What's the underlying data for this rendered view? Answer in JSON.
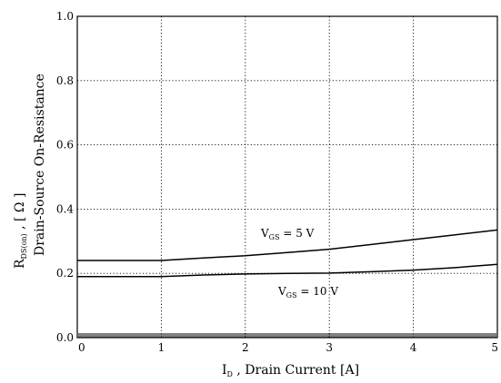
{
  "chart_data": {
    "type": "line",
    "x_ticks": [
      "0",
      "1",
      "2",
      "3",
      "4",
      "5"
    ],
    "y_ticks": [
      "0.0",
      "0.2",
      "0.4",
      "0.6",
      "0.8",
      "1.0"
    ],
    "xlim": [
      0,
      5
    ],
    "ylim": [
      0,
      1.0
    ],
    "grid": true,
    "xlabel": {
      "symbol": "I",
      "subscript": "D",
      "text": " , Drain Current  [A]"
    },
    "ylabel": {
      "line1_symbol": "R",
      "line1_subscript": "DS(on)",
      "line1_text": "  , [ Ω ]",
      "line2": "Drain-Source On-Resistance"
    },
    "series": [
      {
        "label_symbol": "V",
        "label_subscript": "GS",
        "label_text": " = 5 V",
        "x": [
          0,
          0.5,
          1,
          1.5,
          2,
          2.5,
          3,
          3.5,
          4,
          4.5,
          5
        ],
        "y": [
          0.24,
          0.24,
          0.24,
          0.248,
          0.255,
          0.265,
          0.275,
          0.29,
          0.305,
          0.32,
          0.335
        ]
      },
      {
        "label_symbol": "V",
        "label_subscript": "GS",
        "label_text": " = 10 V",
        "x": [
          0,
          0.5,
          1,
          1.5,
          2,
          2.5,
          3,
          3.5,
          4,
          4.5,
          5
        ],
        "y": [
          0.19,
          0.19,
          0.19,
          0.195,
          0.198,
          0.2,
          0.201,
          0.205,
          0.21,
          0.218,
          0.228
        ]
      }
    ]
  }
}
